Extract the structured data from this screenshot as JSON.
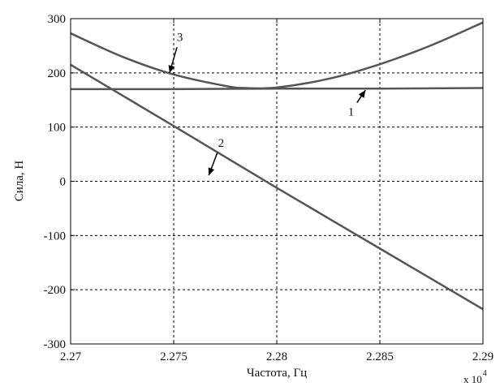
{
  "chart_data": {
    "type": "line",
    "title": "",
    "xlabel": "Частота, Гц",
    "ylabel": "Сила, Н",
    "x_scale_note": {
      "base": "x 10",
      "exponent": "4"
    },
    "xlim": [
      2.27,
      2.29
    ],
    "ylim": [
      -300,
      300
    ],
    "x_ticks": [
      "2.27",
      "2.275",
      "2.28",
      "2.285",
      "2.29"
    ],
    "y_ticks": [
      "300",
      "200",
      "100",
      "0",
      "-100",
      "-200",
      "-300"
    ],
    "x_tick_values": [
      2.27,
      2.275,
      2.28,
      2.285,
      2.29
    ],
    "y_tick_values": [
      300,
      200,
      100,
      0,
      -100,
      -200,
      -300
    ],
    "grid": true,
    "line_color": "#555555",
    "series": [
      {
        "name": "1",
        "x": [
          2.27,
          2.275,
          2.28,
          2.285,
          2.29
        ],
        "y": [
          170,
          170,
          171,
          171,
          172
        ]
      },
      {
        "name": "2",
        "x": [
          2.27,
          2.275,
          2.28,
          2.285,
          2.29
        ],
        "y": [
          215,
          102,
          -12,
          -124,
          -236
        ]
      },
      {
        "name": "3",
        "x": [
          2.27,
          2.2725,
          2.275,
          2.2775,
          2.2785,
          2.28,
          2.2825,
          2.285,
          2.2875,
          2.29
        ],
        "y": [
          273,
          230,
          197,
          176,
          172,
          173,
          189,
          216,
          251,
          293
        ]
      }
    ],
    "annotations": [
      {
        "label": "1",
        "x": 2.2836,
        "y": 129,
        "arrow_to": [
          2.2843,
          168
        ]
      },
      {
        "label": "2",
        "x": 2.2773,
        "y": 71,
        "arrow_to": [
          2.2767,
          11
        ]
      },
      {
        "label": "3",
        "x": 2.2753,
        "y": 266,
        "arrow_to": [
          2.2748,
          200
        ]
      }
    ]
  }
}
